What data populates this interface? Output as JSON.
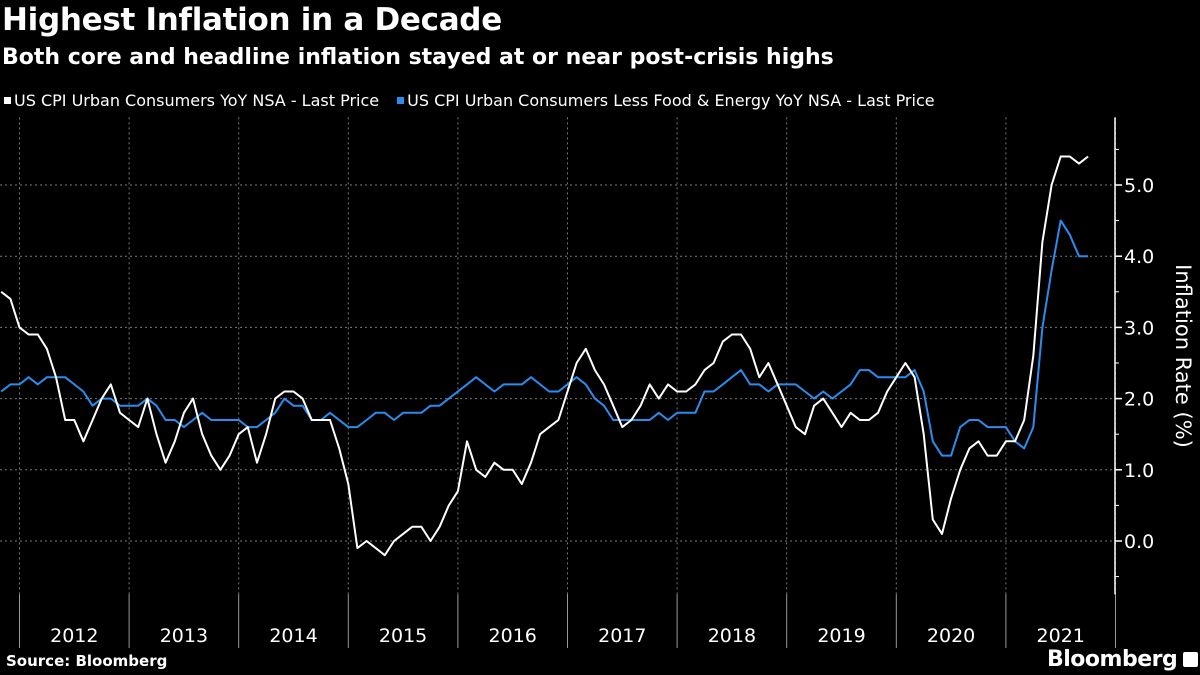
{
  "chart_data": {
    "type": "line",
    "title": "Highest Inflation in a Decade",
    "subtitle": "Both core and headline inflation stayed at or near post-crisis highs",
    "ylabel": "Inflation Rate (%)",
    "xlabel": "",
    "ylim": [
      -0.75,
      5.95
    ],
    "yticks": [
      "0.0",
      "1.0",
      "2.0",
      "3.0",
      "4.0",
      "5.0"
    ],
    "ytick_values": [
      0,
      1,
      2,
      3,
      4,
      5
    ],
    "xticks": [
      "2012",
      "2013",
      "2014",
      "2015",
      "2016",
      "2017",
      "2018",
      "2019",
      "2020",
      "2021"
    ],
    "x_start": "2011-10",
    "x_end": "2021-09",
    "frequency": "monthly",
    "grid": true,
    "legend_position": "top",
    "series": [
      {
        "name": "US CPI Urban Consumers YoY NSA - Last Price",
        "color": "#ffffff",
        "values": [
          3.5,
          3.4,
          3.0,
          2.9,
          2.9,
          2.7,
          2.3,
          1.7,
          1.7,
          1.4,
          1.7,
          2.0,
          2.2,
          1.8,
          1.7,
          1.6,
          2.0,
          1.5,
          1.1,
          1.4,
          1.8,
          2.0,
          1.5,
          1.2,
          1.0,
          1.2,
          1.5,
          1.6,
          1.1,
          1.5,
          2.0,
          2.1,
          2.1,
          2.0,
          1.7,
          1.7,
          1.7,
          1.3,
          0.8,
          -0.1,
          0.0,
          -0.1,
          -0.2,
          0.0,
          0.1,
          0.2,
          0.2,
          0.0,
          0.2,
          0.5,
          0.7,
          1.4,
          1.0,
          0.9,
          1.1,
          1.0,
          1.0,
          0.8,
          1.1,
          1.5,
          1.6,
          1.7,
          2.1,
          2.5,
          2.7,
          2.4,
          2.2,
          1.9,
          1.6,
          1.7,
          1.9,
          2.2,
          2.0,
          2.2,
          2.1,
          2.1,
          2.2,
          2.4,
          2.5,
          2.8,
          2.9,
          2.9,
          2.7,
          2.3,
          2.5,
          2.2,
          1.9,
          1.6,
          1.5,
          1.9,
          2.0,
          1.8,
          1.6,
          1.8,
          1.7,
          1.7,
          1.8,
          2.1,
          2.3,
          2.5,
          2.3,
          1.5,
          0.3,
          0.1,
          0.6,
          1.0,
          1.3,
          1.4,
          1.2,
          1.2,
          1.4,
          1.4,
          1.7,
          2.6,
          4.2,
          5.0,
          5.4,
          5.4,
          5.3,
          5.4
        ]
      },
      {
        "name": "US CPI Urban Consumers Less Food & Energy YoY NSA - Last Price",
        "color": "#2b8cee",
        "values": [
          2.1,
          2.2,
          2.2,
          2.3,
          2.2,
          2.3,
          2.3,
          2.3,
          2.2,
          2.1,
          1.9,
          2.0,
          2.0,
          1.9,
          1.9,
          1.9,
          2.0,
          1.9,
          1.7,
          1.7,
          1.6,
          1.7,
          1.8,
          1.7,
          1.7,
          1.7,
          1.7,
          1.6,
          1.6,
          1.7,
          1.8,
          2.0,
          1.9,
          1.9,
          1.7,
          1.7,
          1.8,
          1.7,
          1.6,
          1.6,
          1.7,
          1.8,
          1.8,
          1.7,
          1.8,
          1.8,
          1.8,
          1.9,
          1.9,
          2.0,
          2.1,
          2.2,
          2.3,
          2.2,
          2.1,
          2.2,
          2.2,
          2.2,
          2.3,
          2.2,
          2.1,
          2.1,
          2.2,
          2.3,
          2.2,
          2.0,
          1.9,
          1.7,
          1.7,
          1.7,
          1.7,
          1.7,
          1.8,
          1.7,
          1.8,
          1.8,
          1.8,
          2.1,
          2.1,
          2.2,
          2.3,
          2.4,
          2.2,
          2.2,
          2.1,
          2.2,
          2.2,
          2.2,
          2.1,
          2.0,
          2.1,
          2.0,
          2.1,
          2.2,
          2.4,
          2.4,
          2.3,
          2.3,
          2.3,
          2.3,
          2.4,
          2.1,
          1.4,
          1.2,
          1.2,
          1.6,
          1.7,
          1.7,
          1.6,
          1.6,
          1.6,
          1.4,
          1.3,
          1.6,
          3.0,
          3.8,
          4.5,
          4.3,
          4.0,
          4.0
        ]
      }
    ]
  },
  "footer": {
    "source": "Source: Bloomberg",
    "logo": "Bloomberg"
  }
}
